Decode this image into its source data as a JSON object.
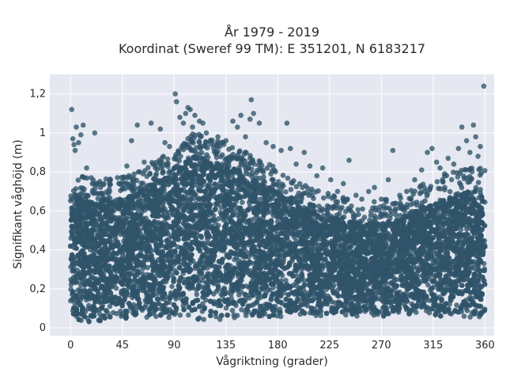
{
  "chart_data": {
    "type": "scatter",
    "title": "År 1979 - 2019",
    "subtitle": "Koordinat (Sweref 99 TM): E 351201, N 6183217",
    "xlabel": "Vågriktning (grader)",
    "ylabel": "Signifikant våghöjd (m)",
    "xlim": [
      -18,
      368
    ],
    "ylim": [
      -0.04,
      1.3
    ],
    "x_ticks": [
      0,
      45,
      90,
      135,
      180,
      225,
      270,
      315,
      360
    ],
    "x_tick_labels": [
      "0",
      "45",
      "90",
      "135",
      "180",
      "225",
      "270",
      "315",
      "360"
    ],
    "y_ticks": [
      0,
      0.2,
      0.4,
      0.6,
      0.8,
      1.0,
      1.2
    ],
    "y_tick_labels": [
      "0",
      "0,2",
      "0,4",
      "0,6",
      "0,8",
      "1",
      "1,2"
    ],
    "grid": true,
    "marker_color": "#2f5369",
    "background_color": "#e5e8f0",
    "envelope": {
      "x": [
        0,
        10,
        20,
        30,
        45,
        60,
        75,
        90,
        100,
        110,
        120,
        135,
        150,
        165,
        180,
        195,
        210,
        225,
        240,
        255,
        270,
        285,
        300,
        315,
        330,
        345,
        360
      ],
      "y_min": [
        0.05,
        0.03,
        0.03,
        0.04,
        0.05,
        0.05,
        0.05,
        0.04,
        0.04,
        0.04,
        0.04,
        0.04,
        0.04,
        0.04,
        0.05,
        0.05,
        0.06,
        0.06,
        0.06,
        0.06,
        0.06,
        0.06,
        0.06,
        0.06,
        0.06,
        0.05,
        0.05
      ],
      "y_dense_max": [
        0.68,
        0.66,
        0.64,
        0.66,
        0.66,
        0.7,
        0.74,
        0.82,
        0.86,
        0.9,
        0.86,
        0.84,
        0.8,
        0.74,
        0.7,
        0.64,
        0.6,
        0.57,
        0.55,
        0.53,
        0.54,
        0.56,
        0.6,
        0.64,
        0.68,
        0.7,
        0.7
      ]
    },
    "outliers": [
      {
        "x": 1,
        "y": 1.12
      },
      {
        "x": 2,
        "y": 0.97
      },
      {
        "x": 3,
        "y": 0.94
      },
      {
        "x": 4,
        "y": 0.91
      },
      {
        "x": 5,
        "y": 1.03
      },
      {
        "x": 7,
        "y": 0.95
      },
      {
        "x": 9,
        "y": 0.99
      },
      {
        "x": 11,
        "y": 1.04
      },
      {
        "x": 14,
        "y": 0.82
      },
      {
        "x": 18,
        "y": 0.77
      },
      {
        "x": 21,
        "y": 1.0
      },
      {
        "x": 26,
        "y": 0.72
      },
      {
        "x": 29,
        "y": 0.74
      },
      {
        "x": 34,
        "y": 0.7
      },
      {
        "x": 43,
        "y": 0.74
      },
      {
        "x": 49,
        "y": 0.83
      },
      {
        "x": 53,
        "y": 0.96
      },
      {
        "x": 58,
        "y": 1.04
      },
      {
        "x": 60,
        "y": 0.8
      },
      {
        "x": 64,
        "y": 0.85
      },
      {
        "x": 67,
        "y": 0.73
      },
      {
        "x": 70,
        "y": 1.05
      },
      {
        "x": 74,
        "y": 0.78
      },
      {
        "x": 78,
        "y": 1.02
      },
      {
        "x": 82,
        "y": 0.95
      },
      {
        "x": 86,
        "y": 0.93
      },
      {
        "x": 91,
        "y": 1.2
      },
      {
        "x": 92,
        "y": 1.16
      },
      {
        "x": 95,
        "y": 1.08
      },
      {
        "x": 98,
        "y": 1.05
      },
      {
        "x": 100,
        "y": 1.1
      },
      {
        "x": 102,
        "y": 1.13
      },
      {
        "x": 104,
        "y": 1.12
      },
      {
        "x": 106,
        "y": 1.03
      },
      {
        "x": 108,
        "y": 1.09
      },
      {
        "x": 112,
        "y": 1.06
      },
      {
        "x": 115,
        "y": 1.05
      },
      {
        "x": 118,
        "y": 1.0
      },
      {
        "x": 122,
        "y": 0.96
      },
      {
        "x": 128,
        "y": 0.98
      },
      {
        "x": 135,
        "y": 0.96
      },
      {
        "x": 141,
        "y": 1.06
      },
      {
        "x": 145,
        "y": 1.03
      },
      {
        "x": 148,
        "y": 1.09
      },
      {
        "x": 152,
        "y": 0.98
      },
      {
        "x": 156,
        "y": 1.07
      },
      {
        "x": 157,
        "y": 1.17
      },
      {
        "x": 159,
        "y": 1.1
      },
      {
        "x": 164,
        "y": 1.05
      },
      {
        "x": 170,
        "y": 0.95
      },
      {
        "x": 176,
        "y": 0.93
      },
      {
        "x": 183,
        "y": 0.91
      },
      {
        "x": 188,
        "y": 1.05
      },
      {
        "x": 191,
        "y": 0.92
      },
      {
        "x": 196,
        "y": 0.84
      },
      {
        "x": 203,
        "y": 0.9
      },
      {
        "x": 208,
        "y": 0.83
      },
      {
        "x": 214,
        "y": 0.78
      },
      {
        "x": 219,
        "y": 0.82
      },
      {
        "x": 226,
        "y": 0.76
      },
      {
        "x": 232,
        "y": 0.7
      },
      {
        "x": 237,
        "y": 0.74
      },
      {
        "x": 242,
        "y": 0.86
      },
      {
        "x": 248,
        "y": 0.68
      },
      {
        "x": 253,
        "y": 0.66
      },
      {
        "x": 259,
        "y": 0.7
      },
      {
        "x": 264,
        "y": 0.72
      },
      {
        "x": 270,
        "y": 0.66
      },
      {
        "x": 276,
        "y": 0.76
      },
      {
        "x": 280,
        "y": 0.91
      },
      {
        "x": 286,
        "y": 0.68
      },
      {
        "x": 292,
        "y": 0.7
      },
      {
        "x": 299,
        "y": 0.76
      },
      {
        "x": 305,
        "y": 0.81
      },
      {
        "x": 310,
        "y": 0.9
      },
      {
        "x": 314,
        "y": 0.92
      },
      {
        "x": 318,
        "y": 0.85
      },
      {
        "x": 321,
        "y": 0.82
      },
      {
        "x": 325,
        "y": 0.79
      },
      {
        "x": 328,
        "y": 0.87
      },
      {
        "x": 333,
        "y": 0.84
      },
      {
        "x": 337,
        "y": 0.92
      },
      {
        "x": 340,
        "y": 1.03
      },
      {
        "x": 344,
        "y": 0.96
      },
      {
        "x": 347,
        "y": 0.9
      },
      {
        "x": 350,
        "y": 1.04
      },
      {
        "x": 352,
        "y": 0.98
      },
      {
        "x": 354,
        "y": 0.88
      },
      {
        "x": 356,
        "y": 0.93
      },
      {
        "x": 359,
        "y": 1.24
      }
    ]
  }
}
